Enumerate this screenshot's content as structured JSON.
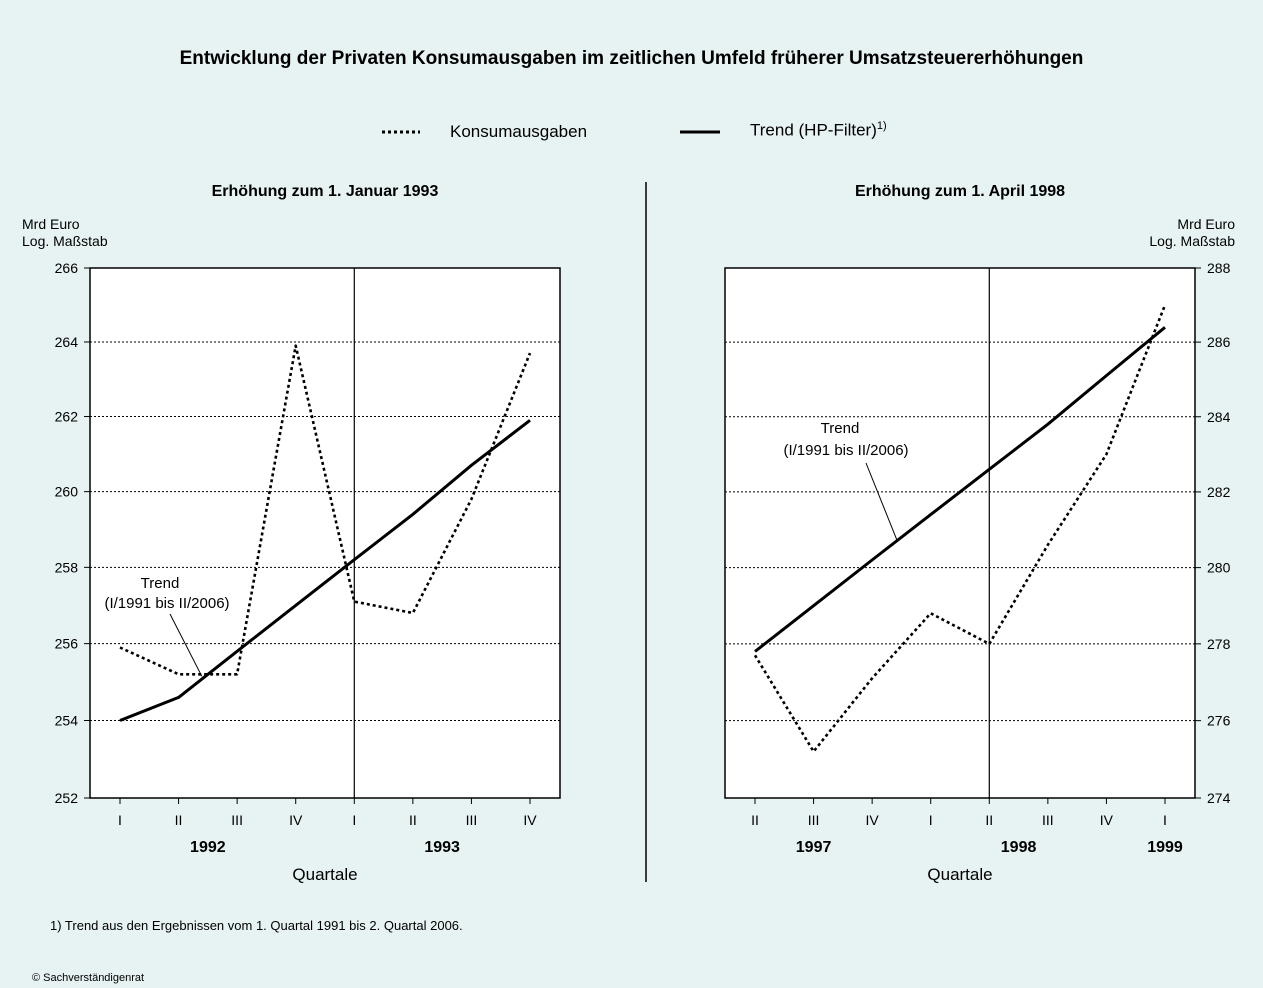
{
  "title": "Entwicklung der Privaten Konsumausgaben im zeitlichen Umfeld früherer Umsatzsteuererhöhungen",
  "legend": {
    "series1": "Konsumausgaben",
    "series2": "Trend (HP-Filter)",
    "series2_sup": "1)"
  },
  "footnote": "1) Trend aus den Ergebnissen vom 1. Quartal 1991 bis 2. Quartal 2006.",
  "copyright": "© Sachverständigenrat",
  "colors": {
    "background": "#e7f2f3",
    "plot_background": "#ffffff",
    "lines": "#000000"
  },
  "chart_data": [
    {
      "type": "line",
      "title": "Erhöhung zum 1. Januar 1993",
      "unit_line1": "Mrd Euro",
      "unit_line2": "Log. Maßstab",
      "ylim": [
        252,
        266
      ],
      "y_ticks": [
        252,
        254,
        256,
        258,
        260,
        262,
        264,
        266
      ],
      "y_scale": "log",
      "y_axis_side": "left",
      "grid": "horizontal dotted",
      "categories": [
        "I",
        "II",
        "III",
        "IV",
        "I",
        "II",
        "III",
        "IV"
      ],
      "years": [
        {
          "label": "1992",
          "from": 0,
          "to": 3
        },
        {
          "label": "1993",
          "from": 4,
          "to": 7
        }
      ],
      "xlabel": "Quartale",
      "vertical_marker_index": 4,
      "series": [
        {
          "name": "Konsumausgaben",
          "style": "dotted",
          "values": [
            255.9,
            255.2,
            255.2,
            263.9,
            257.1,
            256.8,
            259.8,
            263.7
          ]
        },
        {
          "name": "Trend (HP-Filter)",
          "style": "solid",
          "values": [
            254.0,
            254.6,
            255.8,
            257.0,
            258.2,
            259.4,
            260.7,
            261.9
          ]
        }
      ],
      "annotation": {
        "line1": "Trend",
        "line2": "(I/1991 bis II/2006)"
      }
    },
    {
      "type": "line",
      "title": "Erhöhung zum 1. April 1998",
      "unit_line1": "Mrd Euro",
      "unit_line2": "Log. Maßstab",
      "ylim": [
        274,
        288
      ],
      "y_ticks": [
        274,
        276,
        278,
        280,
        282,
        284,
        286,
        288
      ],
      "y_scale": "log",
      "y_axis_side": "right",
      "grid": "horizontal dotted",
      "categories": [
        "II",
        "III",
        "IV",
        "I",
        "II",
        "III",
        "IV",
        "I"
      ],
      "years": [
        {
          "label": "1997",
          "from": 0,
          "to": 2
        },
        {
          "label": "1998",
          "from": 3,
          "to": 6
        },
        {
          "label": "1999",
          "from": 7,
          "to": 7
        }
      ],
      "xlabel": "Quartale",
      "vertical_marker_index": 4,
      "series": [
        {
          "name": "Konsumausgaben",
          "style": "dotted",
          "values": [
            277.7,
            275.2,
            277.1,
            278.8,
            278.0,
            280.6,
            283.0,
            287.0
          ]
        },
        {
          "name": "Trend (HP-Filter)",
          "style": "solid",
          "values": [
            277.8,
            279.0,
            280.2,
            281.4,
            282.6,
            283.8,
            285.1,
            286.4
          ]
        }
      ],
      "annotation": {
        "line1": "Trend",
        "line2": "(I/1991 bis II/2006)"
      }
    }
  ]
}
